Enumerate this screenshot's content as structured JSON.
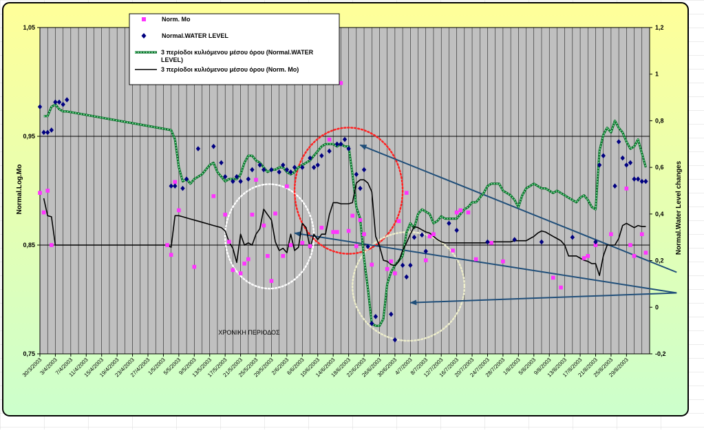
{
  "chart_data": {
    "type": "line",
    "title": "",
    "xlabel": "ΧΡΟΝΙΚΗ ΠΕΡΙΟΔΟΣ",
    "ylabel": "Normal.Log.Mo",
    "y2label": "Normal.Water Level changes",
    "ylim": [
      0.75,
      1.05
    ],
    "y2lim": [
      -0.2,
      1.2
    ],
    "yticks": [
      "1,05",
      "0,95",
      "0,85",
      "0,75"
    ],
    "y2ticks": [
      "1,2",
      "1",
      "0,8",
      "0,6",
      "0,4",
      "0,2",
      "0",
      "-0,2"
    ],
    "xlim": [
      0,
      158
    ],
    "x_tick_labels": [
      "30/3/2003",
      "3/4/2003",
      "7/4/2003",
      "11/4/2003",
      "15/4/2003",
      "19/4/2003",
      "23/4/2003",
      "27/4/2003",
      "1/5/2003",
      "5/5/2003",
      "9/5/2003",
      "13/5/2003",
      "17/5/2003",
      "21/5/2003",
      "25/5/2003",
      "29/5/2003",
      "2/6/2003",
      "6/6/2003",
      "10/6/2003",
      "14/6/2003",
      "18/6/2003",
      "22/6/2003",
      "26/6/2003",
      "30/6/2003",
      "4/7/2003",
      "8/7/2003",
      "12/7/2003",
      "16/7/2003",
      "20/7/2003",
      "24/7/2003",
      "28/7/2003",
      "1/8/2003",
      "5/8/2003",
      "9/8/2003",
      "13/8/2003",
      "17/8/2003",
      "21/8/2003",
      "25/8/2003",
      "29/8/2003"
    ],
    "grid": true,
    "legend_position": "top-left",
    "legend": [
      "Norm. Mo",
      "Normal.WATER LEVEL",
      "3 περίοδοι κυλιόμενου μέσου όρου (Normal.WATER LEVEL)",
      "3 περίοδοι κυλιόμενου μέσου όρου (Norm. Mo)"
    ],
    "series": [
      {
        "name": "Norm. Mo",
        "axis": "left",
        "kind": "scatter",
        "color": "#ff33ff",
        "x": [
          0,
          1,
          2,
          3,
          33,
          34,
          35,
          36,
          40,
          45,
          48,
          49,
          50,
          52,
          53,
          54,
          55,
          56,
          58,
          59,
          60,
          61,
          63,
          64,
          65,
          68,
          70,
          73,
          75,
          76,
          77,
          78,
          80,
          81,
          82,
          83,
          84,
          86,
          90,
          91,
          92,
          93,
          95,
          100,
          101,
          102,
          107,
          108,
          109,
          111,
          113,
          117,
          120,
          133,
          135,
          141,
          142,
          144,
          148,
          152,
          153,
          154,
          156,
          157
        ],
        "y": [
          0.898,
          0.88,
          0.9,
          0.85,
          0.85,
          0.841,
          0.908,
          0.882,
          0.83,
          0.895,
          0.878,
          0.853,
          0.827,
          0.824,
          0.833,
          0.837,
          0.878,
          0.91,
          0.868,
          0.84,
          0.817,
          0.879,
          0.84,
          0.904,
          0.85,
          0.852,
          0.849,
          0.866,
          0.947,
          0.862,
          0.862,
          0.999,
          0.863,
          0.877,
          0.849,
          0.873,
          0.86,
          0.832,
          0.828,
          0.835,
          0.824,
          0.872,
          0.898,
          0.836,
          0.858,
          0.86,
          0.845,
          0.88,
          0.882,
          0.88,
          0.837,
          0.852,
          0.835,
          0.82,
          0.811,
          0.838,
          0.84,
          0.85,
          0.86,
          0.902,
          0.85,
          0.84,
          0.86,
          0.843
        ]
      },
      {
        "name": "Normal.WATER LEVEL",
        "axis": "right",
        "kind": "scatter",
        "color": "#000080",
        "x": [
          0,
          1,
          2,
          3,
          4,
          5,
          6,
          7,
          34,
          35,
          37,
          38,
          41,
          45,
          47,
          48,
          50,
          51,
          52,
          54,
          55,
          57,
          58,
          60,
          62,
          63,
          64,
          65,
          66,
          68,
          70,
          71,
          72,
          73,
          75,
          77,
          78,
          79,
          80,
          82,
          83,
          84,
          85,
          86,
          87,
          91,
          92,
          94,
          95,
          96,
          97,
          99,
          100,
          106,
          108,
          116,
          123,
          130,
          138,
          144,
          145,
          146,
          149,
          150,
          151,
          152,
          153,
          154,
          155,
          156,
          157
        ],
        "y": [
          0.86,
          0.75,
          0.75,
          0.76,
          0.88,
          0.88,
          0.87,
          0.89,
          0.52,
          0.52,
          0.51,
          0.55,
          0.68,
          0.69,
          0.62,
          0.56,
          0.54,
          0.56,
          0.54,
          0.55,
          0.59,
          0.61,
          0.59,
          0.59,
          0.58,
          0.61,
          0.59,
          0.58,
          0.6,
          0.6,
          0.64,
          0.6,
          0.61,
          0.65,
          0.67,
          0.7,
          0.7,
          0.72,
          0.68,
          0.57,
          0.51,
          0.59,
          0.26,
          -0.07,
          -0.04,
          -0.03,
          -0.14,
          0.18,
          0.13,
          0.18,
          0.3,
          0.31,
          0.24,
          0.36,
          0.33,
          0.28,
          0.29,
          0.28,
          0.3,
          0.28,
          0.61,
          0.65,
          0.52,
          0.71,
          0.64,
          0.61,
          0.62,
          0.55,
          0.55,
          0.54,
          0.54
        ]
      },
      {
        "name": "3 περίοδοι κυλιόμενου μέσου όρου (Normal.WATER LEVEL)",
        "axis": "right",
        "kind": "line",
        "color": "#33cc66",
        "x": [
          1,
          2,
          3,
          4,
          5,
          6,
          7,
          34,
          35,
          36,
          37,
          38,
          39,
          40,
          41,
          42,
          43,
          44,
          45,
          46,
          47,
          48,
          49,
          50,
          51,
          52,
          53,
          54,
          55,
          56,
          57,
          58,
          59,
          60,
          61,
          62,
          63,
          64,
          65,
          66,
          67,
          68,
          69,
          70,
          71,
          72,
          73,
          74,
          75,
          76,
          77,
          78,
          79,
          80,
          81,
          82,
          83,
          84,
          85,
          86,
          87,
          88,
          89,
          90,
          91,
          92,
          93,
          94,
          95,
          96,
          97,
          98,
          99,
          100,
          101,
          102,
          103,
          104,
          105,
          106,
          107,
          108,
          109,
          110,
          111,
          112,
          113,
          114,
          115,
          116,
          117,
          118,
          119,
          120,
          121,
          122,
          123,
          124,
          125,
          126,
          127,
          128,
          129,
          130,
          131,
          132,
          133,
          134,
          135,
          136,
          137,
          138,
          139,
          140,
          141,
          142,
          143,
          144,
          145,
          146,
          147,
          148,
          149,
          150,
          151,
          152,
          153,
          154,
          155,
          156,
          157
        ],
        "y": [
          0.82,
          0.82,
          0.86,
          0.87,
          0.85,
          0.84,
          0.84,
          0.76,
          0.72,
          0.6,
          0.54,
          0.55,
          0.53,
          0.55,
          0.56,
          0.57,
          0.59,
          0.61,
          0.62,
          0.58,
          0.56,
          0.54,
          0.55,
          0.55,
          0.55,
          0.57,
          0.62,
          0.65,
          0.65,
          0.63,
          0.62,
          0.6,
          0.58,
          0.59,
          0.59,
          0.6,
          0.6,
          0.58,
          0.57,
          0.58,
          0.6,
          0.61,
          0.62,
          0.63,
          0.65,
          0.67,
          0.69,
          0.7,
          0.7,
          0.7,
          0.69,
          0.7,
          0.69,
          0.69,
          0.57,
          0.43,
          0.38,
          0.21,
          0.08,
          -0.07,
          -0.08,
          -0.08,
          -0.05,
          0.1,
          0.15,
          0.18,
          0.2,
          0.22,
          0.32,
          0.36,
          0.34,
          0.4,
          0.42,
          0.41,
          0.4,
          0.36,
          0.37,
          0.39,
          0.38,
          0.38,
          0.38,
          0.38,
          0.4,
          0.42,
          0.43,
          0.45,
          0.45,
          0.47,
          0.49,
          0.52,
          0.53,
          0.53,
          0.53,
          0.5,
          0.49,
          0.48,
          0.46,
          0.43,
          0.48,
          0.51,
          0.52,
          0.53,
          0.52,
          0.51,
          0.51,
          0.5,
          0.49,
          0.5,
          0.49,
          0.48,
          0.47,
          0.46,
          0.45,
          0.47,
          0.48,
          0.46,
          0.43,
          0.42,
          0.67,
          0.74,
          0.77,
          0.75,
          0.8,
          0.77,
          0.75,
          0.71,
          0.68,
          0.69,
          0.72,
          0.66,
          0.6
        ]
      },
      {
        "name": "3 περίοδοι κυλιόμενου μέσου όρου (Norm. Mo)",
        "axis": "left",
        "kind": "line",
        "color": "#000000",
        "x": [
          1,
          2,
          3,
          4,
          5,
          33,
          34,
          35,
          36,
          37,
          38,
          39,
          40,
          41,
          42,
          43,
          44,
          45,
          46,
          47,
          48,
          49,
          50,
          51,
          52,
          53,
          54,
          55,
          56,
          57,
          58,
          59,
          60,
          61,
          62,
          63,
          64,
          65,
          66,
          67,
          68,
          69,
          70,
          71,
          72,
          73,
          74,
          75,
          76,
          77,
          78,
          79,
          80,
          81,
          82,
          83,
          84,
          85,
          86,
          87,
          88,
          89,
          90,
          91,
          92,
          93,
          94,
          95,
          96,
          97,
          98,
          99,
          100,
          101,
          102,
          103,
          104,
          105,
          106,
          107,
          108,
          109,
          110,
          111,
          112,
          113,
          114,
          115,
          116,
          117,
          118,
          119,
          120,
          121,
          122,
          123,
          124,
          125,
          126,
          127,
          128,
          129,
          130,
          131,
          132,
          133,
          134,
          135,
          136,
          137,
          138,
          139,
          140,
          141,
          142,
          143,
          144,
          145,
          146,
          147,
          148,
          149,
          150,
          151,
          152,
          153,
          154,
          155,
          156,
          157
        ],
        "y": [
          0.893,
          0.877,
          0.876,
          0.85,
          0.85,
          0.85,
          0.848,
          0.877,
          0.877,
          0.876,
          0.875,
          0.874,
          0.873,
          0.872,
          0.871,
          0.87,
          0.869,
          0.868,
          0.867,
          0.866,
          0.863,
          0.853,
          0.847,
          0.834,
          0.86,
          0.85,
          0.852,
          0.85,
          0.86,
          0.865,
          0.883,
          0.878,
          0.873,
          0.853,
          0.845,
          0.847,
          0.843,
          0.86,
          0.845,
          0.848,
          0.87,
          0.866,
          0.847,
          0.86,
          0.855,
          0.86,
          0.86,
          0.878,
          0.889,
          0.889,
          0.888,
          0.888,
          0.888,
          0.889,
          0.907,
          0.91,
          0.91,
          0.907,
          0.899,
          0.858,
          0.849,
          0.836,
          0.835,
          0.832,
          0.831,
          0.835,
          0.845,
          0.852,
          0.86,
          0.867,
          0.866,
          0.864,
          0.862,
          0.861,
          0.858,
          0.855,
          0.853,
          0.852,
          0.852,
          0.852,
          0.852,
          0.852,
          0.852,
          0.852,
          0.852,
          0.852,
          0.852,
          0.852,
          0.852,
          0.853,
          0.853,
          0.853,
          0.853,
          0.853,
          0.853,
          0.854,
          0.854,
          0.854,
          0.854,
          0.856,
          0.858,
          0.861,
          0.863,
          0.862,
          0.86,
          0.858,
          0.856,
          0.854,
          0.85,
          0.84,
          0.84,
          0.84,
          0.838,
          0.836,
          0.835,
          0.833,
          0.833,
          0.822,
          0.84,
          0.85,
          0.85,
          0.85,
          0.856,
          0.868,
          0.87,
          0.868,
          0.866,
          0.868,
          0.867,
          0.867
        ]
      }
    ],
    "annotations": [
      {
        "type": "ellipse",
        "color": "#ffffff",
        "style": "dotted",
        "x_center": 59.5,
        "x_radius": 11.5,
        "y_center": 0.858,
        "y_radius": 0.048,
        "axis": "left"
      },
      {
        "type": "ellipse",
        "color": "#ff2020",
        "style": "dotted",
        "x_center": 80,
        "x_radius": 14,
        "y_center": 0.9,
        "y_radius": 0.058,
        "axis": "left"
      },
      {
        "type": "ellipse",
        "color": "#eeeecc",
        "style": "dotted",
        "x_center": 95.5,
        "x_radius": 14.5,
        "y_center": 0.812,
        "y_radius": 0.05,
        "axis": "left"
      },
      {
        "type": "arrow",
        "color": "#1f4e79",
        "from_x": 165,
        "from_y": 0.825,
        "to_x": 83,
        "to_y": 0.942,
        "axis": "left"
      },
      {
        "type": "arrow",
        "color": "#1f4e79",
        "from_x": 165,
        "from_y": 0.806,
        "to_x": 66,
        "to_y": 0.861,
        "axis": "left"
      },
      {
        "type": "arrow",
        "color": "#1f4e79",
        "from_x": 165,
        "from_y": 0.806,
        "to_x": 96,
        "to_y": 0.797,
        "axis": "left"
      }
    ]
  }
}
